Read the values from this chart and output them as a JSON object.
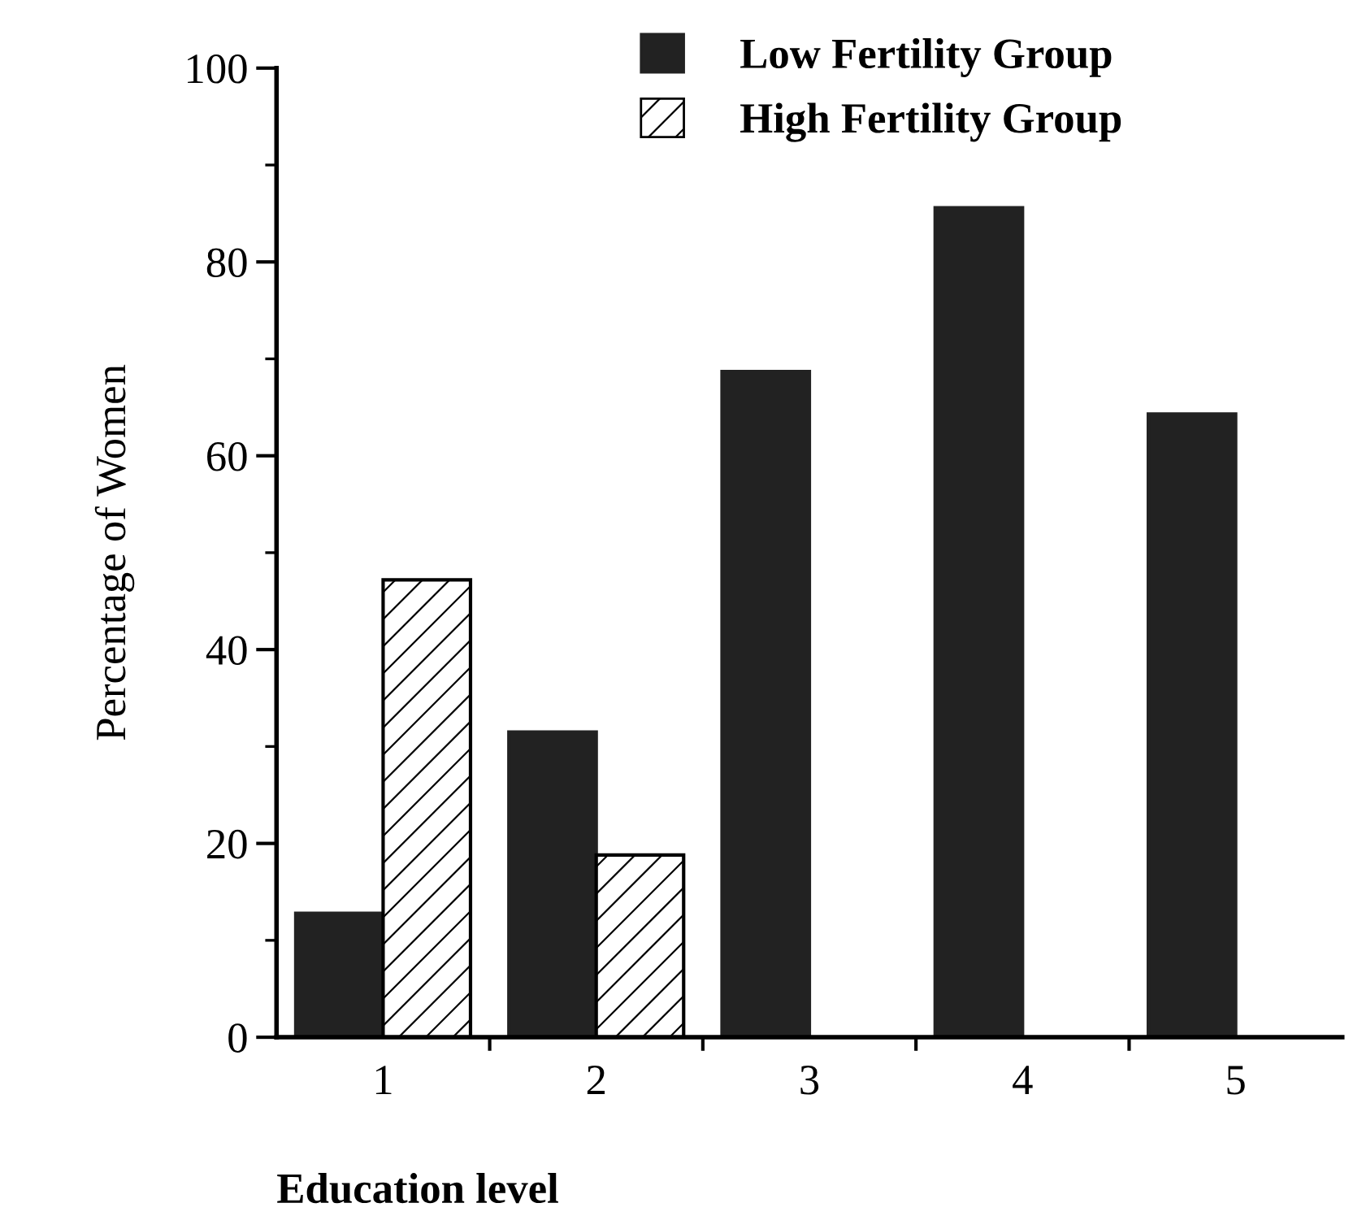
{
  "chart_data": {
    "type": "bar",
    "xlabel": "Education level",
    "ylabel": "Percentage of Women",
    "categories": [
      "1",
      "2",
      "3",
      "4",
      "5"
    ],
    "series": [
      {
        "name": "Low Fertility Group",
        "color": "#222222",
        "values": [
          12.8,
          31.5,
          68.7,
          85.6,
          64.3
        ]
      },
      {
        "name": "High Fertility Group",
        "color": "#000000",
        "values": [
          47.2,
          18.8,
          null,
          null,
          null
        ]
      }
    ],
    "ylim": [
      0,
      100
    ],
    "yticks": [
      0,
      20,
      40,
      60,
      80,
      100
    ],
    "legend": "top right",
    "grid": false
  }
}
